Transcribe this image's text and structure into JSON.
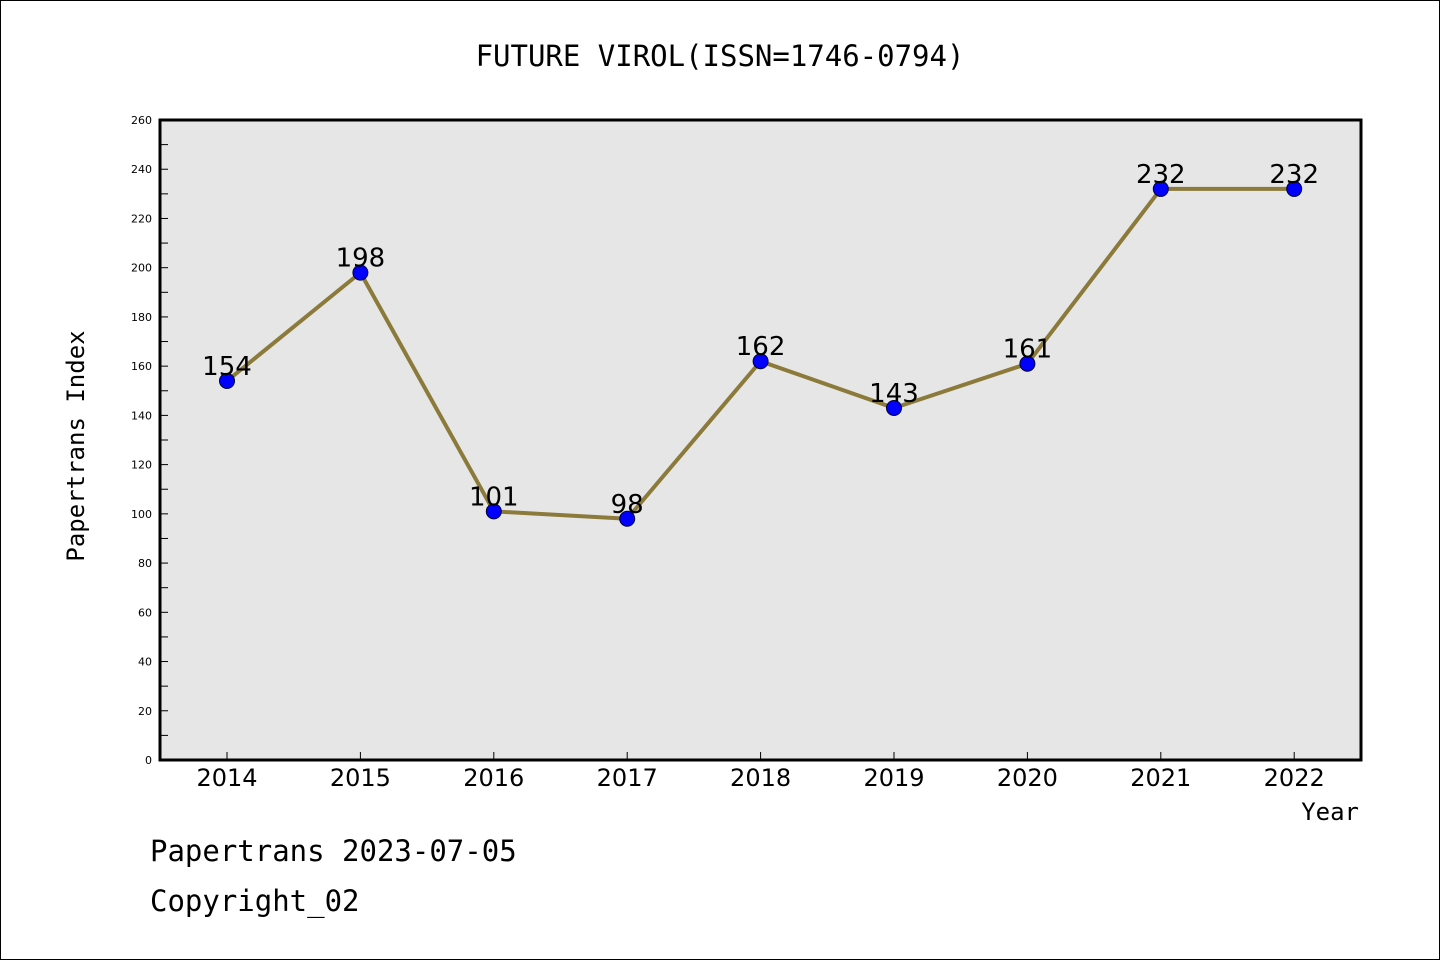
{
  "chart_data": {
    "type": "line",
    "title": "FUTURE VIROL(ISSN=1746-0794)",
    "xlabel": "Year",
    "ylabel": "Papertrans Index",
    "categories": [
      "2014",
      "2015",
      "2016",
      "2017",
      "2018",
      "2019",
      "2020",
      "2021",
      "2022"
    ],
    "series": [
      {
        "values": [
          154,
          198,
          101,
          98,
          162,
          143,
          161,
          232,
          232
        ]
      }
    ],
    "data_labels": [
      "154",
      "198",
      "101",
      "98",
      "162",
      "143",
      "161",
      "232",
      "232"
    ],
    "ylim": [
      0,
      260
    ],
    "yticks": [
      "0",
      "20",
      "40",
      "60",
      "80",
      "100",
      "120",
      "140",
      "160",
      "180",
      "200",
      "220",
      "240",
      "260"
    ],
    "grid": false,
    "legend": "none",
    "colors": {
      "line": "#8b7a3a",
      "marker": "#0000ff",
      "plot_background": "#e6e6e6"
    }
  },
  "footer": {
    "line1": "Papertrans 2023-07-05",
    "line2": "Copyright_02"
  }
}
